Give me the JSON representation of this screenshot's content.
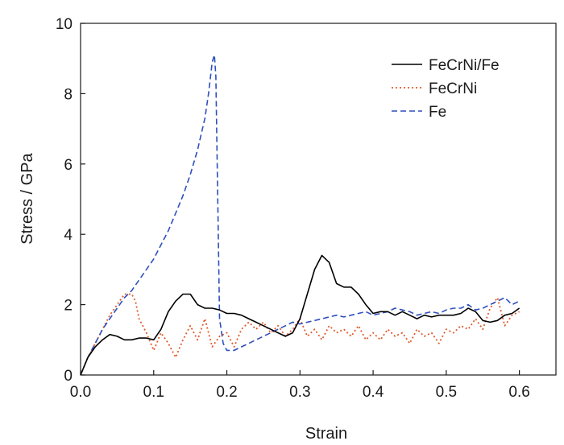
{
  "chart_data": {
    "type": "line",
    "xlabel": "Strain",
    "ylabel": "Stress / GPa",
    "xlim": [
      0.0,
      0.65
    ],
    "ylim": [
      0,
      10
    ],
    "x_ticks": [
      "0.0",
      "0.1",
      "0.2",
      "0.3",
      "0.4",
      "0.5",
      "0.6"
    ],
    "y_ticks": [
      "0",
      "2",
      "4",
      "6",
      "8",
      "10"
    ],
    "grid": false,
    "legend_position": "top-right",
    "series": [
      {
        "name": "FeCrNi/Fe",
        "color": "#000000",
        "dash": "solid",
        "x": [
          0.0,
          0.01,
          0.02,
          0.03,
          0.04,
          0.05,
          0.06,
          0.07,
          0.08,
          0.09,
          0.1,
          0.11,
          0.12,
          0.13,
          0.14,
          0.15,
          0.16,
          0.17,
          0.18,
          0.19,
          0.2,
          0.21,
          0.22,
          0.23,
          0.24,
          0.25,
          0.26,
          0.27,
          0.28,
          0.29,
          0.3,
          0.31,
          0.32,
          0.33,
          0.34,
          0.35,
          0.36,
          0.37,
          0.38,
          0.39,
          0.4,
          0.41,
          0.42,
          0.43,
          0.44,
          0.45,
          0.46,
          0.47,
          0.48,
          0.49,
          0.5,
          0.51,
          0.52,
          0.53,
          0.54,
          0.55,
          0.56,
          0.57,
          0.58,
          0.59,
          0.6
        ],
        "y": [
          0.0,
          0.5,
          0.8,
          1.0,
          1.15,
          1.1,
          1.0,
          1.0,
          1.05,
          1.05,
          1.0,
          1.3,
          1.8,
          2.1,
          2.3,
          2.3,
          2.0,
          1.9,
          1.9,
          1.85,
          1.75,
          1.75,
          1.7,
          1.6,
          1.5,
          1.4,
          1.3,
          1.2,
          1.1,
          1.2,
          1.6,
          2.3,
          3.0,
          3.4,
          3.2,
          2.6,
          2.5,
          2.5,
          2.3,
          2.0,
          1.75,
          1.8,
          1.8,
          1.7,
          1.8,
          1.7,
          1.6,
          1.7,
          1.65,
          1.7,
          1.7,
          1.7,
          1.75,
          1.9,
          1.8,
          1.55,
          1.5,
          1.55,
          1.7,
          1.75,
          1.9
        ]
      },
      {
        "name": "FeCrNi",
        "color": "#e05a2b",
        "dash": "dotted",
        "x": [
          0.0,
          0.01,
          0.02,
          0.03,
          0.04,
          0.05,
          0.06,
          0.065,
          0.07,
          0.075,
          0.08,
          0.09,
          0.1,
          0.11,
          0.12,
          0.13,
          0.14,
          0.15,
          0.16,
          0.17,
          0.18,
          0.19,
          0.2,
          0.21,
          0.22,
          0.23,
          0.24,
          0.25,
          0.26,
          0.27,
          0.28,
          0.29,
          0.3,
          0.31,
          0.32,
          0.33,
          0.34,
          0.35,
          0.36,
          0.37,
          0.38,
          0.39,
          0.4,
          0.41,
          0.42,
          0.43,
          0.44,
          0.45,
          0.46,
          0.47,
          0.48,
          0.49,
          0.5,
          0.51,
          0.52,
          0.53,
          0.54,
          0.55,
          0.56,
          0.57,
          0.58,
          0.59,
          0.6
        ],
        "y": [
          0.0,
          0.5,
          0.9,
          1.3,
          1.7,
          2.0,
          2.3,
          2.3,
          2.3,
          2.1,
          1.6,
          1.2,
          0.7,
          1.2,
          0.9,
          0.5,
          1.0,
          1.4,
          1.0,
          1.6,
          0.8,
          1.1,
          1.2,
          0.8,
          1.3,
          1.5,
          1.3,
          1.5,
          1.2,
          1.4,
          1.1,
          1.3,
          1.6,
          1.1,
          1.3,
          1.0,
          1.4,
          1.2,
          1.3,
          1.1,
          1.4,
          1.0,
          1.2,
          1.0,
          1.3,
          1.1,
          1.2,
          0.9,
          1.3,
          1.1,
          1.2,
          0.9,
          1.3,
          1.2,
          1.4,
          1.3,
          1.6,
          1.3,
          1.9,
          2.2,
          1.4,
          1.7,
          1.8
        ]
      },
      {
        "name": "Fe",
        "color": "#2e4fbd",
        "dash": "dashed",
        "x": [
          0.0,
          0.01,
          0.02,
          0.03,
          0.04,
          0.05,
          0.06,
          0.07,
          0.08,
          0.09,
          0.1,
          0.11,
          0.12,
          0.13,
          0.14,
          0.15,
          0.16,
          0.17,
          0.175,
          0.18,
          0.183,
          0.185,
          0.188,
          0.19,
          0.195,
          0.2,
          0.21,
          0.22,
          0.23,
          0.24,
          0.25,
          0.26,
          0.27,
          0.28,
          0.29,
          0.3,
          0.31,
          0.32,
          0.33,
          0.34,
          0.35,
          0.36,
          0.37,
          0.38,
          0.39,
          0.4,
          0.41,
          0.42,
          0.43,
          0.44,
          0.45,
          0.46,
          0.47,
          0.48,
          0.49,
          0.5,
          0.51,
          0.52,
          0.53,
          0.54,
          0.55,
          0.56,
          0.57,
          0.58,
          0.59,
          0.6
        ],
        "y": [
          0.0,
          0.5,
          0.9,
          1.3,
          1.6,
          1.9,
          2.2,
          2.4,
          2.7,
          3.0,
          3.3,
          3.7,
          4.1,
          4.6,
          5.1,
          5.7,
          6.4,
          7.3,
          8.0,
          8.9,
          9.1,
          8.5,
          4.5,
          1.6,
          0.9,
          0.7,
          0.7,
          0.8,
          0.9,
          1.0,
          1.1,
          1.2,
          1.3,
          1.4,
          1.5,
          1.45,
          1.5,
          1.55,
          1.6,
          1.65,
          1.7,
          1.65,
          1.7,
          1.75,
          1.8,
          1.7,
          1.75,
          1.8,
          1.9,
          1.85,
          1.8,
          1.7,
          1.75,
          1.8,
          1.75,
          1.85,
          1.9,
          1.9,
          2.0,
          1.85,
          1.9,
          2.0,
          2.1,
          2.2,
          2.0,
          2.1
        ]
      }
    ]
  }
}
